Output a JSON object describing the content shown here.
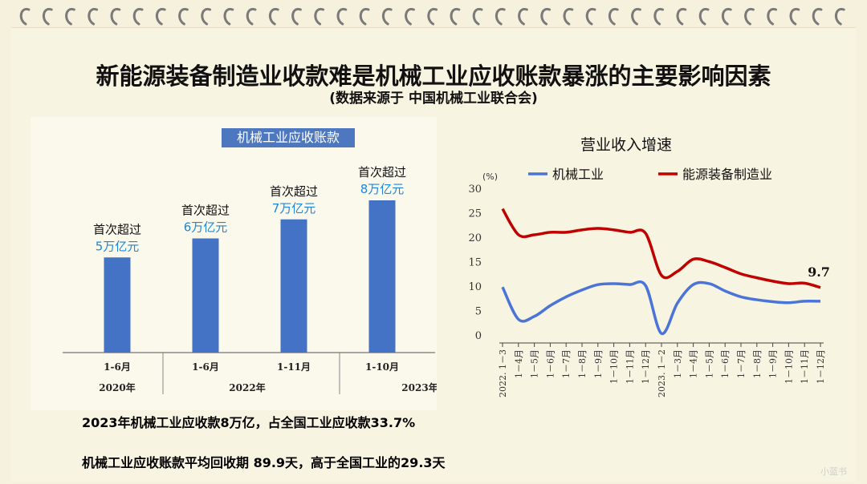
{
  "slide": {
    "title": "新能源装备制造业收款难是机械工业应收账款暴涨的主要影响因素",
    "subtitle": "(数据来源于 中国机械工业联合会)",
    "note1": "2023年机械工业应收款8万亿，占全国工业应收款33.7%",
    "note2": "机械工业应收账款平均回收期   89.9天，高于全国工业的29.3天",
    "watermark": "小蓝书"
  },
  "chart_data": [
    {
      "type": "bar",
      "title": "机械工业应收账款",
      "unit": "万亿元",
      "categories": [
        "1-6月",
        "1-6月",
        "1-11月",
        "1-10月"
      ],
      "years": [
        "2020年",
        "2022年",
        "2023年"
      ],
      "values": [
        5,
        6,
        7,
        8
      ],
      "labels": [
        {
          "line1": "首次超过",
          "line2": "5万亿元"
        },
        {
          "line1": "首次超过",
          "line2": "6万亿元"
        },
        {
          "line1": "首次超过",
          "line2": "7万亿元"
        },
        {
          "line1": "首次超过",
          "line2": "8万亿元"
        }
      ],
      "color": "#4472c4"
    },
    {
      "type": "line",
      "title": "营业收入增速",
      "ylabel": "(%)",
      "ylim": [
        0,
        30
      ],
      "yticks": [
        0,
        5,
        10,
        15,
        20,
        25,
        30
      ],
      "x": [
        "2022. 1－3",
        "1－4月",
        "1－5月",
        "1－6月",
        "1－7月",
        "1－8月",
        "1－9月",
        "1－10月",
        "1－11月",
        "1－12月",
        "2023. 1－2",
        "1－3月",
        "1－4月",
        "1－5月",
        "1－6月",
        "1－7月",
        "1－8月",
        "1－9月",
        "1－10月",
        "1－11月",
        "1－12月"
      ],
      "series": [
        {
          "name": "机械工业",
          "color": "#4a74d8",
          "values": [
            9.8,
            3.2,
            3.8,
            6.0,
            7.8,
            9.2,
            10.3,
            10.5,
            10.3,
            10.1,
            0.3,
            6.5,
            10.3,
            10.5,
            9.0,
            7.8,
            7.2,
            6.8,
            6.6,
            6.9,
            6.9
          ]
        },
        {
          "name": "能源装备制造业",
          "color": "#c00000",
          "values": [
            25.8,
            20.5,
            20.5,
            21.0,
            21.0,
            21.5,
            21.8,
            21.5,
            21.0,
            20.8,
            12.2,
            13.0,
            15.5,
            15.0,
            13.8,
            12.5,
            11.7,
            11.0,
            10.5,
            10.6,
            9.7
          ]
        }
      ],
      "annotation": "9.7"
    }
  ]
}
